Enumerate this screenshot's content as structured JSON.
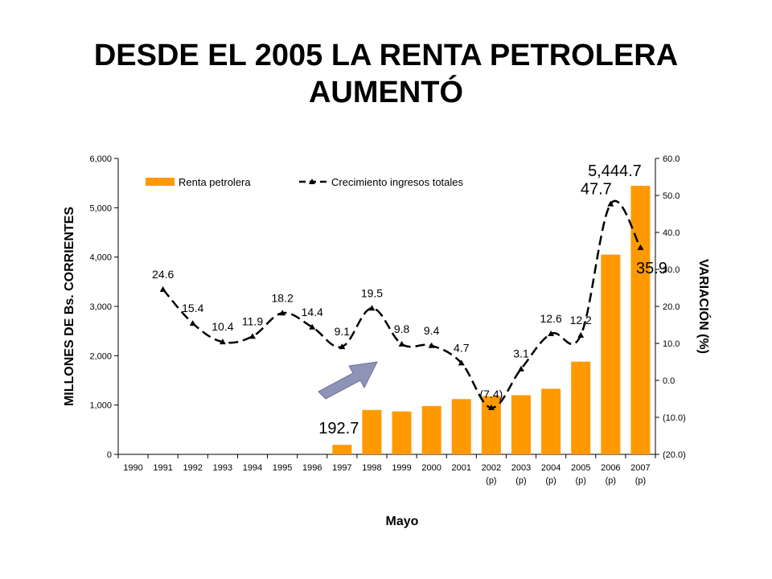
{
  "title": {
    "line1": "DESDE EL 2005 LA RENTA PETROLERA",
    "line2": "AUMENTÓ"
  },
  "footer": "Mayo",
  "colors": {
    "bar": "#FF9900",
    "line": "#000000",
    "arrow": "#8E93B8"
  },
  "chart_data": {
    "type": "bar",
    "combo": "bar+line dual axis",
    "categories": [
      "1990",
      "1991",
      "1992",
      "1993",
      "1994",
      "1995",
      "1996",
      "1997",
      "1998",
      "1999",
      "2000",
      "2001",
      "2002",
      "2003",
      "2004",
      "2005",
      "2006",
      "2007"
    ],
    "category_notes": [
      "",
      "",
      "",
      "",
      "",
      "",
      "",
      "",
      "",
      "",
      "",
      "",
      "(p)",
      "(p)",
      "(p)",
      "(p)",
      "(p)",
      "(p)"
    ],
    "ylabel": "MILLONES DE Bs. CORRIENTES",
    "y2label": "VARIACIÓN (%)",
    "ylim": [
      0,
      6000
    ],
    "y2lim": [
      -20,
      60
    ],
    "y_ticks": [
      "0",
      "1,000",
      "2,000",
      "3,000",
      "4,000",
      "5,000",
      "6,000"
    ],
    "y2_ticks": [
      "(20.0)",
      "(10.0)",
      "0.0",
      "10.0",
      "20.0",
      "30.0",
      "40.0",
      "50.0",
      "60.0"
    ],
    "grid": false,
    "legend_position": "top",
    "series": [
      {
        "name": "Renta petrolera",
        "kind": "bar",
        "axis": "left",
        "values": [
          null,
          null,
          null,
          null,
          null,
          null,
          null,
          192.7,
          900,
          870,
          980,
          1120,
          1180,
          1200,
          1330,
          1880,
          4050,
          5444.7
        ],
        "labels": [
          "",
          "",
          "",
          "",
          "",
          "",
          "",
          "192.7",
          "",
          "",
          "",
          "",
          "",
          "",
          "",
          "",
          "",
          "5,444.7"
        ]
      },
      {
        "name": "Crecimiento ingresos totales",
        "kind": "line",
        "axis": "right",
        "values": [
          null,
          24.6,
          15.4,
          10.4,
          11.9,
          18.2,
          14.4,
          9.1,
          19.5,
          9.8,
          9.4,
          4.7,
          -7.4,
          3.1,
          12.6,
          12.2,
          47.7,
          35.9
        ],
        "labels": [
          "",
          "24.6",
          "15.4",
          "10.4",
          "11.9",
          "18.2",
          "14.4",
          "9.1",
          "19.5",
          "9.8",
          "9.4",
          "4.7",
          "(7.4)",
          "3.1",
          "12.6",
          "12.2",
          "47.7",
          "35.9"
        ]
      }
    ]
  }
}
